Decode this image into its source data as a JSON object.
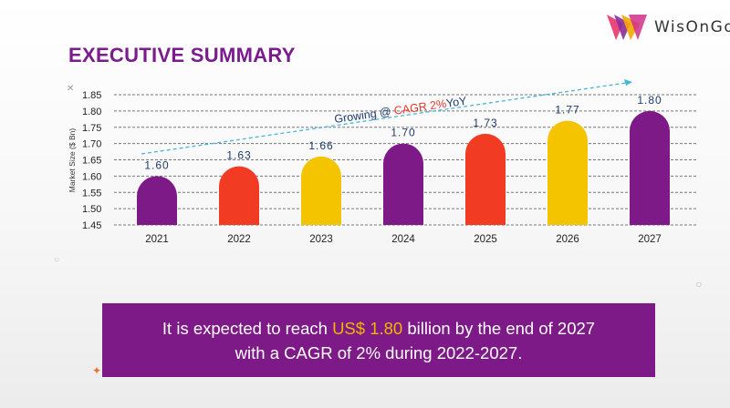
{
  "brand": {
    "name": "WisOnGo"
  },
  "page": {
    "title": "EXECUTIVE SUMMARY"
  },
  "chart_data": {
    "type": "bar",
    "title": "",
    "ylabel": "Market Size ($ Bn)",
    "xlabel": "",
    "categories": [
      "2021",
      "2022",
      "2023",
      "2024",
      "2025",
      "2026",
      "2027"
    ],
    "values": [
      1.6,
      1.63,
      1.66,
      1.7,
      1.73,
      1.77,
      1.8
    ],
    "value_labels": [
      "1.60",
      "1.63",
      "1.66",
      "1.70",
      "1.73",
      "1.77",
      "1.80"
    ],
    "ylim": [
      1.45,
      1.85
    ],
    "yticks": [
      "1.85",
      "1.80",
      "1.75",
      "1.70",
      "1.65",
      "1.60",
      "1.55",
      "1.50",
      "1.45"
    ],
    "bar_colors": [
      "#7d1a87",
      "#f23b23",
      "#f5c400",
      "#7d1a87",
      "#f23b23",
      "#f5c400",
      "#7d1a87"
    ],
    "grid": true,
    "annotation": {
      "prefix": "Growing @ ",
      "highlight": "CAGR 2%",
      "suffix": "YoY"
    }
  },
  "summary": {
    "line1_prefix": "It is expected to reach ",
    "line1_highlight": "US$ 1.80",
    "line1_suffix": " billion by the end of 2027",
    "line2": "with a CAGR of 2% during 2022-2027."
  },
  "colors": {
    "purple": "#7d1a87",
    "red": "#f23b23",
    "yellow": "#f5c400",
    "trend": "#45b8d8",
    "highlight": "#f5b400"
  }
}
